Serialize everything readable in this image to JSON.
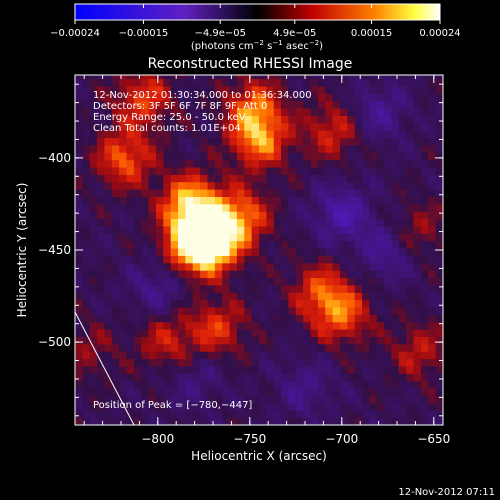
{
  "chart_data": {
    "type": "heatmap",
    "title": "Reconstructed RHESSI Image",
    "xlabel": "Heliocentric X (arcsec)",
    "ylabel": "Heliocentric Y (arcsec)",
    "xlim": [
      -845,
      -645
    ],
    "ylim": [
      -545,
      -355
    ],
    "x_ticks": [
      -800,
      -750,
      -700,
      -650
    ],
    "x_tick_labels": [
      "−800",
      "−750",
      "−700",
      "−650"
    ],
    "y_ticks": [
      -400,
      -450,
      -500
    ],
    "y_tick_labels": [
      "−400",
      "−450",
      "−500"
    ],
    "colorbar": {
      "range": [
        -0.00024,
        0.00024
      ],
      "ticks": [
        -0.00024,
        -0.00015,
        -4.9e-05,
        4.9e-05,
        0.00015,
        0.00024
      ],
      "tick_labels": [
        "−0.00024",
        "−0.00015",
        "−4.9e−05",
        "4.9e−05",
        "0.00015",
        "0.00024"
      ],
      "units_prefix": "(photons cm",
      "units_exp1": "−2",
      "units_mid": " s",
      "units_exp2": "−1",
      "units_mid2": " asec",
      "units_exp3": "−2",
      "units_suffix": ")"
    },
    "hotspots": [
      {
        "x": -780,
        "y": -447,
        "value": 0.00024
      },
      {
        "x": -782,
        "y": -425,
        "value": 0.00022
      },
      {
        "x": -770,
        "y": -445,
        "value": 0.0002
      },
      {
        "x": -755,
        "y": -432,
        "value": 0.00016
      },
      {
        "x": -745,
        "y": -390,
        "value": 0.00017
      },
      {
        "x": -748,
        "y": -372,
        "value": 0.00014
      },
      {
        "x": -808,
        "y": -368,
        "value": 0.00013
      },
      {
        "x": -818,
        "y": -400,
        "value": 0.00015
      },
      {
        "x": -768,
        "y": -492,
        "value": 0.00012
      },
      {
        "x": -795,
        "y": -500,
        "value": 0.0001
      },
      {
        "x": -700,
        "y": -485,
        "value": 0.00014
      },
      {
        "x": -712,
        "y": -472,
        "value": 0.00012
      },
      {
        "x": -705,
        "y": -385,
        "value": 0.00011
      },
      {
        "x": -660,
        "y": -440,
        "value": 8e-05
      },
      {
        "x": -658,
        "y": -505,
        "value": 9e-05
      },
      {
        "x": -838,
        "y": -505,
        "value": 6e-05
      }
    ],
    "coldspots": [
      {
        "x": -700,
        "y": -430,
        "value": -0.00012
      },
      {
        "x": -675,
        "y": -450,
        "value": -0.0001
      },
      {
        "x": -680,
        "y": -375,
        "value": -9e-05
      },
      {
        "x": -800,
        "y": -470,
        "value": -8e-05
      },
      {
        "x": -720,
        "y": -525,
        "value": -7e-05
      },
      {
        "x": -780,
        "y": -520,
        "value": -6e-05
      }
    ],
    "peak": {
      "x": -780,
      "y": -447
    }
  },
  "annotations": {
    "time_range": "12-Nov-2012 01:30:34.000 to 01:36:34.000",
    "detectors": "Detectors: 3F 5F 6F 7F 8F 9F, Att 0",
    "energy": "Energy Range: 25.0 - 50.0 keV",
    "clean": "Clean    Total counts: 1.01E+04",
    "peak": "Position of Peak = [−780,−447]"
  },
  "footer": {
    "timestamp": "12-Nov-2012 07:11"
  }
}
